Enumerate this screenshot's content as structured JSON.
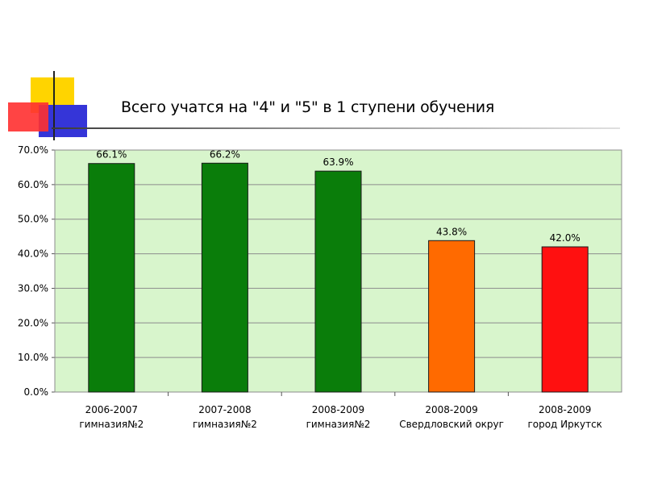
{
  "slide": {
    "title": "Всего учатся на \"4\" и \"5\" в 1 ступени обучения"
  },
  "chart_data": {
    "type": "bar",
    "title": "Всего учатся на \"4\" и \"5\" в 1 ступени обучения",
    "categories": [
      [
        "2006-2007",
        "гимназия№2"
      ],
      [
        "2007-2008",
        "гимназия№2"
      ],
      [
        "2008-2009",
        "гимназия№2"
      ],
      [
        "2008-2009",
        "Свердловский округ"
      ],
      [
        "2008-2009",
        "город Иркутск"
      ]
    ],
    "values": [
      66.1,
      66.2,
      63.9,
      43.8,
      42.0
    ],
    "value_labels": [
      "66.1%",
      "66.2%",
      "63.9%",
      "43.8%",
      "42.0%"
    ],
    "bar_colors": [
      "#0a7d0a",
      "#0a7d0a",
      "#0a7d0a",
      "#ff6a00",
      "#ff1010"
    ],
    "ylim": [
      0,
      70
    ],
    "yticks": [
      "0.0%",
      "10.0%",
      "20.0%",
      "30.0%",
      "40.0%",
      "50.0%",
      "60.0%",
      "70.0%"
    ],
    "plot_background": "#d8f5cc",
    "grid": true,
    "legend": "none",
    "xlabel": "",
    "ylabel": ""
  }
}
